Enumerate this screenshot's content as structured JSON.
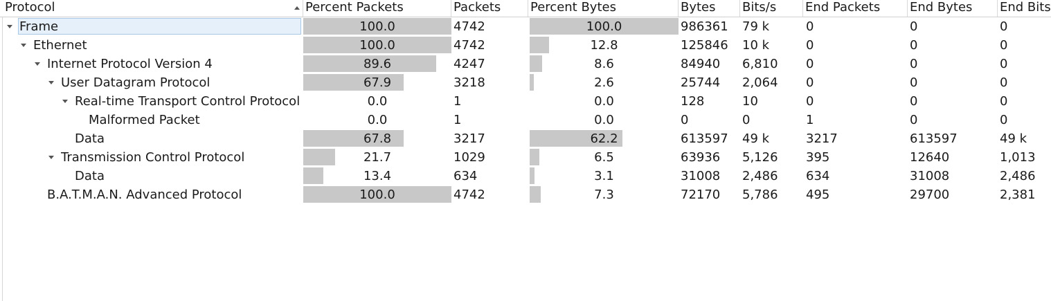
{
  "header": {
    "protocol": "Protocol",
    "percent_packets": "Percent Packets",
    "packets": "Packets",
    "percent_bytes": "Percent Bytes",
    "bytes": "Bytes",
    "bits_s": "Bits/s",
    "end_packets": "End Packets",
    "end_bytes": "End Bytes",
    "end_bits": "End Bits"
  },
  "rows": [
    {
      "protocol": "Frame",
      "depth": 0,
      "expandable": true,
      "selected": true,
      "percent_packets": "100.0",
      "packets": "4742",
      "percent_bytes": "100.0",
      "bytes": "986361",
      "bits_s": "79 k",
      "end_packets": "0",
      "end_bytes": "0",
      "end_bits": "0"
    },
    {
      "protocol": "Ethernet",
      "depth": 1,
      "expandable": true,
      "selected": false,
      "percent_packets": "100.0",
      "packets": "4742",
      "percent_bytes": "12.8",
      "bytes": "125846",
      "bits_s": "10 k",
      "end_packets": "0",
      "end_bytes": "0",
      "end_bits": "0"
    },
    {
      "protocol": "Internet Protocol Version 4",
      "depth": 2,
      "expandable": true,
      "selected": false,
      "percent_packets": "89.6",
      "packets": "4247",
      "percent_bytes": "8.6",
      "bytes": "84940",
      "bits_s": "6,810",
      "end_packets": "0",
      "end_bytes": "0",
      "end_bits": "0"
    },
    {
      "protocol": "User Datagram Protocol",
      "depth": 3,
      "expandable": true,
      "selected": false,
      "percent_packets": "67.9",
      "packets": "3218",
      "percent_bytes": "2.6",
      "bytes": "25744",
      "bits_s": "2,064",
      "end_packets": "0",
      "end_bytes": "0",
      "end_bits": "0"
    },
    {
      "protocol": "Real-time Transport Control Protocol",
      "depth": 4,
      "expandable": true,
      "selected": false,
      "percent_packets": "0.0",
      "packets": "1",
      "percent_bytes": "0.0",
      "bytes": "128",
      "bits_s": "10",
      "end_packets": "0",
      "end_bytes": "0",
      "end_bits": "0"
    },
    {
      "protocol": "Malformed Packet",
      "depth": 5,
      "expandable": false,
      "selected": false,
      "percent_packets": "0.0",
      "packets": "1",
      "percent_bytes": "0.0",
      "bytes": "0",
      "bits_s": "0",
      "end_packets": "1",
      "end_bytes": "0",
      "end_bits": "0"
    },
    {
      "protocol": "Data",
      "depth": 4,
      "expandable": false,
      "selected": false,
      "percent_packets": "67.8",
      "packets": "3217",
      "percent_bytes": "62.2",
      "bytes": "613597",
      "bits_s": "49 k",
      "end_packets": "3217",
      "end_bytes": "613597",
      "end_bits": "49 k"
    },
    {
      "protocol": "Transmission Control Protocol",
      "depth": 3,
      "expandable": true,
      "selected": false,
      "percent_packets": "21.7",
      "packets": "1029",
      "percent_bytes": "6.5",
      "bytes": "63936",
      "bits_s": "5,126",
      "end_packets": "395",
      "end_bytes": "12640",
      "end_bits": "1,013"
    },
    {
      "protocol": "Data",
      "depth": 4,
      "expandable": false,
      "selected": false,
      "percent_packets": "13.4",
      "packets": "634",
      "percent_bytes": "3.1",
      "bytes": "31008",
      "bits_s": "2,486",
      "end_packets": "634",
      "end_bytes": "31008",
      "end_bits": "2,486"
    },
    {
      "protocol": "B.A.T.M.A.N. Advanced Protocol",
      "depth": 2,
      "expandable": false,
      "selected": false,
      "percent_packets": "100.0",
      "packets": "4742",
      "percent_bytes": "7.3",
      "bytes": "72170",
      "bits_s": "5,786",
      "end_packets": "495",
      "end_bytes": "29700",
      "end_bits": "2,381"
    }
  ]
}
